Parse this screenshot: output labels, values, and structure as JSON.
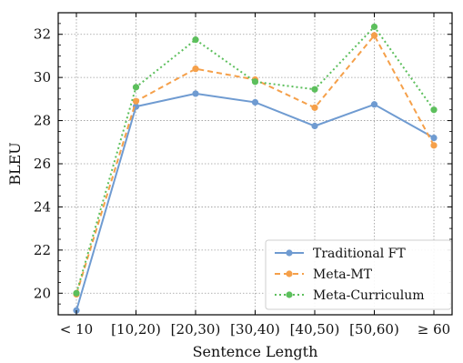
{
  "chart_data": {
    "type": "line",
    "title": "",
    "xlabel": "Sentence Length",
    "ylabel": "BLEU",
    "categories": [
      "< 10",
      "[10,20)",
      "[20,30)",
      "[30,40)",
      "[40,50)",
      "[50,60)",
      "≥ 60"
    ],
    "ylim": [
      19,
      33
    ],
    "yticks": [
      20,
      22,
      24,
      26,
      28,
      30,
      32
    ],
    "grid": true,
    "legend_position": "bottom-right",
    "series": [
      {
        "name": "Traditional FT",
        "color": "#6f9bd1",
        "dash": "solid",
        "values": [
          19.2,
          28.65,
          29.25,
          28.85,
          27.75,
          28.75,
          27.2
        ]
      },
      {
        "name": "Meta-MT",
        "color": "#f5a04a",
        "dash": "dashed",
        "values": [
          19.95,
          28.9,
          30.4,
          29.9,
          28.6,
          31.95,
          26.85
        ]
      },
      {
        "name": "Meta-Curriculum",
        "color": "#5cbf5c",
        "dash": "dotted",
        "values": [
          20.0,
          29.55,
          31.75,
          29.8,
          29.45,
          32.35,
          28.5
        ]
      }
    ]
  }
}
